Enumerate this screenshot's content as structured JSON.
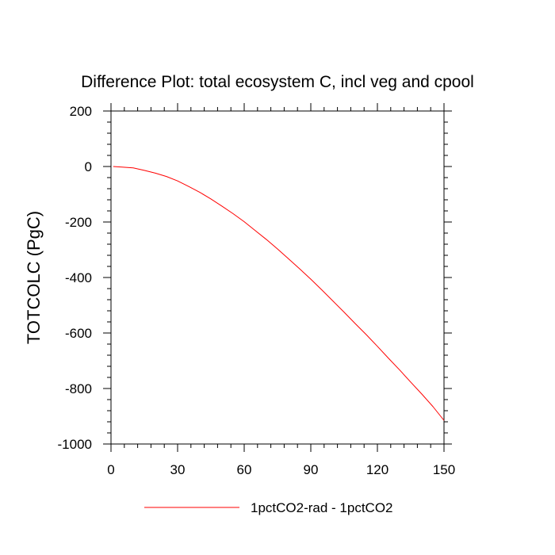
{
  "chart_data": {
    "type": "line",
    "title": "Difference Plot: total ecosystem C, incl veg and cpool",
    "xlabel": "",
    "ylabel": "TOTCOLC  (PgC)",
    "xlim": [
      0,
      150
    ],
    "ylim": [
      -1000,
      200
    ],
    "xticks": [
      0,
      30,
      60,
      90,
      120,
      150
    ],
    "yticks": [
      200,
      0,
      -200,
      -400,
      -600,
      -800,
      -1000
    ],
    "x_minor_step": 6,
    "y_minor_step": 40,
    "grid": false,
    "legend_position": "bottom-center",
    "series": [
      {
        "name": "1pctCO2-rad - 1pctCO2",
        "color": "#ff0000",
        "x": [
          1,
          5,
          10,
          15,
          20,
          25,
          30,
          35,
          40,
          45,
          50,
          55,
          60,
          65,
          70,
          75,
          80,
          85,
          90,
          95,
          100,
          105,
          110,
          115,
          120,
          125,
          130,
          135,
          140,
          145,
          150
        ],
        "y": [
          0,
          -2,
          -5,
          -14,
          -24,
          -36,
          -52,
          -72,
          -93,
          -117,
          -143,
          -170,
          -199,
          -231,
          -263,
          -297,
          -333,
          -369,
          -406,
          -445,
          -485,
          -525,
          -566,
          -606,
          -648,
          -691,
          -733,
          -777,
          -820,
          -865,
          -915
        ]
      }
    ]
  }
}
